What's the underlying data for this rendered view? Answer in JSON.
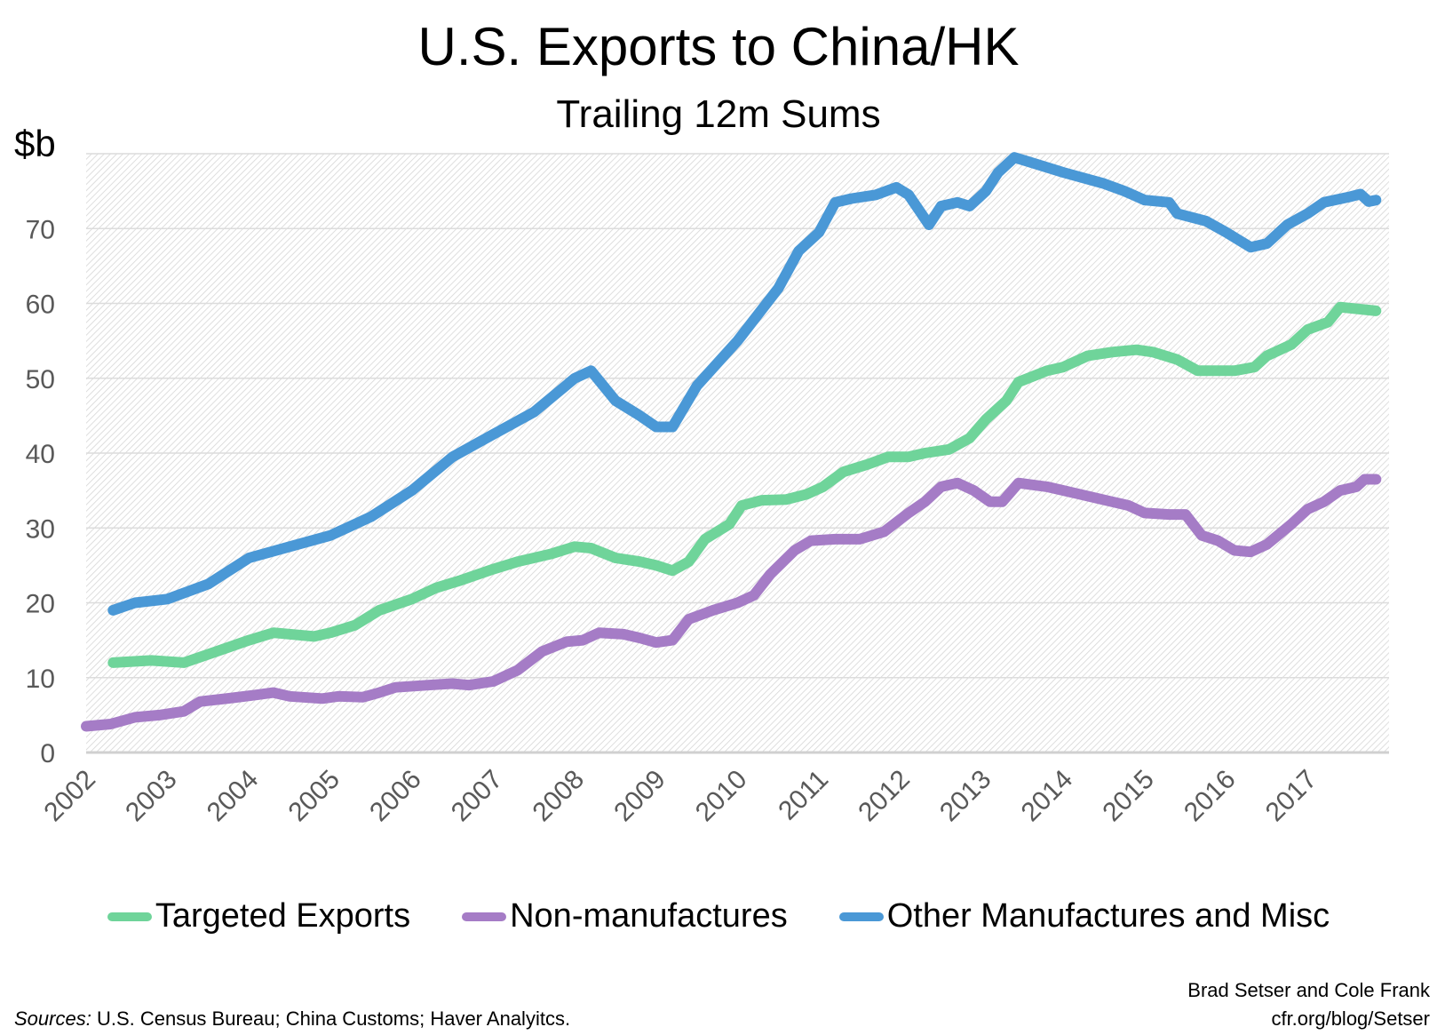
{
  "chart_data": {
    "type": "line",
    "title": "U.S. Exports to China/HK",
    "subtitle": "Trailing 12m Sums",
    "ylabel": "$b",
    "ylim": [
      0,
      80
    ],
    "yticks": [
      "0",
      "10",
      "20",
      "30",
      "40",
      "50",
      "60",
      "70"
    ],
    "xlim": [
      2002,
      2018
    ],
    "xticks": [
      "2002",
      "2003",
      "2004",
      "2005",
      "2006",
      "2007",
      "2008",
      "2009",
      "2010",
      "2011",
      "2012",
      "2013",
      "2014",
      "2015",
      "2016",
      "2017"
    ],
    "grid": true,
    "legend_position": "bottom",
    "series": [
      {
        "name": "Targeted Exports",
        "color": "#6fd49a",
        "x": [
          2002.33,
          2002.8,
          2003.2,
          2003.6,
          2004,
          2004.3,
          2004.8,
          2005,
          2005.3,
          2005.6,
          2006,
          2006.3,
          2006.6,
          2007,
          2007.3,
          2007.7,
          2008,
          2008.2,
          2008.5,
          2008.8,
          2009,
          2009.2,
          2009.4,
          2009.6,
          2009.9,
          2010.05,
          2010.3,
          2010.6,
          2010.85,
          2011.05,
          2011.3,
          2011.6,
          2011.85,
          2012.1,
          2012.3,
          2012.6,
          2012.85,
          2013.05,
          2013.3,
          2013.45,
          2013.8,
          2014,
          2014.3,
          2014.6,
          2014.9,
          2015.1,
          2015.4,
          2015.65,
          2015.9,
          2016.1,
          2016.35,
          2016.5,
          2016.8,
          2017,
          2017.25,
          2017.4,
          2017.84
        ],
        "y": [
          12,
          12.3,
          12,
          13.5,
          15,
          16,
          15.5,
          16,
          17,
          19,
          20.5,
          22,
          23,
          24.5,
          25.5,
          26.5,
          27.5,
          27.3,
          26,
          25.5,
          25,
          24.3,
          25.5,
          28.5,
          30.5,
          33,
          33.7,
          33.8,
          34.5,
          35.5,
          37.5,
          38.5,
          39.5,
          39.5,
          40,
          40.5,
          42,
          44.5,
          47,
          49.5,
          51,
          51.5,
          53,
          53.5,
          53.8,
          53.5,
          52.5,
          51,
          51,
          51,
          51.5,
          53,
          54.5,
          56.5,
          57.5,
          59.5,
          59
        ]
      },
      {
        "name": "Non-manufactures",
        "color": "#a57cc6",
        "x": [
          2002,
          2002.3,
          2002.6,
          2002.9,
          2003.2,
          2003.4,
          2003.8,
          2004.1,
          2004.3,
          2004.5,
          2004.9,
          2005.1,
          2005.4,
          2005.6,
          2005.8,
          2006.2,
          2006.5,
          2006.7,
          2007,
          2007.3,
          2007.6,
          2007.9,
          2008.1,
          2008.3,
          2008.6,
          2008.8,
          2009,
          2009.2,
          2009.4,
          2009.7,
          2010,
          2010.2,
          2010.4,
          2010.7,
          2010.9,
          2011.2,
          2011.5,
          2011.8,
          2012.1,
          2012.3,
          2012.5,
          2012.7,
          2012.9,
          2013.1,
          2013.25,
          2013.45,
          2013.8,
          2014.2,
          2014.6,
          2014.8,
          2015,
          2015.3,
          2015.5,
          2015.7,
          2015.9,
          2016.1,
          2016.3,
          2016.5,
          2016.8,
          2017,
          2017.2,
          2017.4,
          2017.6,
          2017.7,
          2017.84
        ],
        "y": [
          3.5,
          3.8,
          4.7,
          5,
          5.5,
          6.8,
          7.3,
          7.7,
          8,
          7.5,
          7.2,
          7.5,
          7.4,
          8,
          8.7,
          9,
          9.2,
          9,
          9.5,
          11,
          13.5,
          14.8,
          15,
          16,
          15.8,
          15.3,
          14.7,
          15,
          17.8,
          19,
          20,
          21,
          23.8,
          27,
          28.3,
          28.5,
          28.5,
          29.5,
          32,
          33.5,
          35.5,
          36,
          35,
          33.5,
          33.5,
          36,
          35.5,
          34.5,
          33.5,
          33,
          32,
          31.8,
          31.8,
          29,
          28.3,
          27,
          26.8,
          27.8,
          30.5,
          32.5,
          33.5,
          35,
          35.5,
          36.5,
          36.5
        ]
      },
      {
        "name": "Other Manufactures and Misc",
        "color": "#4a98d6",
        "x": [
          2002.33,
          2002.6,
          2003,
          2003.5,
          2004,
          2004.5,
          2005,
          2005.5,
          2006,
          2006.5,
          2007,
          2007.5,
          2008,
          2008.2,
          2008.5,
          2008.8,
          2009,
          2009.2,
          2009.5,
          2009.75,
          2010,
          2010.5,
          2010.75,
          2011,
          2011.2,
          2011.4,
          2011.7,
          2011.95,
          2012.1,
          2012.35,
          2012.5,
          2012.7,
          2012.85,
          2013.05,
          2013.2,
          2013.4,
          2013.55,
          2014,
          2014.5,
          2014.75,
          2015,
          2015.3,
          2015.4,
          2015.75,
          2016,
          2016.3,
          2016.5,
          2016.75,
          2017,
          2017.2,
          2017.5,
          2017.65,
          2017.75,
          2017.84
        ],
        "y": [
          19,
          20,
          20.5,
          22.5,
          26,
          27.5,
          29,
          31.5,
          35,
          39.5,
          42.5,
          45.5,
          50,
          51,
          47,
          45,
          43.5,
          43.5,
          49,
          52,
          55,
          62,
          67,
          69.5,
          73.5,
          74,
          74.5,
          75.5,
          74.5,
          70.5,
          73,
          73.5,
          73,
          75,
          77.5,
          79.5,
          79,
          77.5,
          76,
          75,
          73.8,
          73.5,
          72,
          71,
          69.5,
          67.5,
          68,
          70.5,
          72,
          73.5,
          74.2,
          74.6,
          73.6,
          73.8
        ]
      }
    ]
  },
  "footer": {
    "sources_label": "Sources:",
    "sources_text": " U.S. Census Bureau; China Customs; Haver Analyitcs.",
    "credit_authors": "Brad Setser and Cole Frank",
    "credit_url": "cfr.org/blog/Setser"
  }
}
